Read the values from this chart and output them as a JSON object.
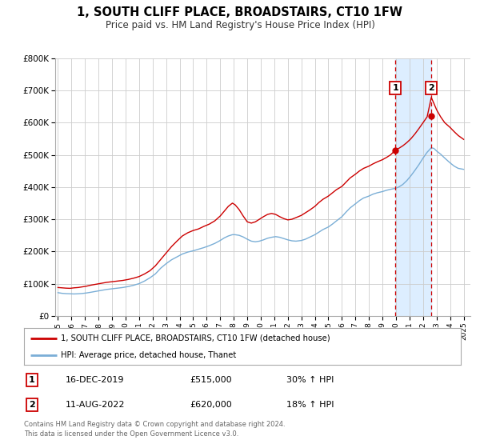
{
  "title": "1, SOUTH CLIFF PLACE, BROADSTAIRS, CT10 1FW",
  "subtitle": "Price paid vs. HM Land Registry's House Price Index (HPI)",
  "ylim": [
    0,
    800000
  ],
  "yticks": [
    0,
    100000,
    200000,
    300000,
    400000,
    500000,
    600000,
    700000,
    800000
  ],
  "ytick_labels": [
    "£0",
    "£100K",
    "£200K",
    "£300K",
    "£400K",
    "£500K",
    "£600K",
    "£700K",
    "£800K"
  ],
  "xlim_start": 1994.8,
  "xlim_end": 2025.5,
  "xticks": [
    1995,
    1996,
    1997,
    1998,
    1999,
    2000,
    2001,
    2002,
    2003,
    2004,
    2005,
    2006,
    2007,
    2008,
    2009,
    2010,
    2011,
    2012,
    2013,
    2014,
    2015,
    2016,
    2017,
    2018,
    2019,
    2020,
    2021,
    2022,
    2023,
    2024,
    2025
  ],
  "legend_label_red": "1, SOUTH CLIFF PLACE, BROADSTAIRS, CT10 1FW (detached house)",
  "legend_label_blue": "HPI: Average price, detached house, Thanet",
  "event1_x": 2019.958,
  "event1_y": 515000,
  "event1_label": "1",
  "event1_date": "16-DEC-2019",
  "event1_price": "£515,000",
  "event1_hpi": "30% ↑ HPI",
  "event2_x": 2022.608,
  "event2_y": 620000,
  "event2_label": "2",
  "event2_date": "11-AUG-2022",
  "event2_price": "£620,000",
  "event2_hpi": "18% ↑ HPI",
  "shade_start": 2019.958,
  "shade_end": 2022.608,
  "red_color": "#cc0000",
  "blue_color": "#7aaed6",
  "shade_color": "#ddeeff",
  "background_color": "#ffffff",
  "grid_color": "#cccccc",
  "footer_text": "Contains HM Land Registry data © Crown copyright and database right 2024.\nThis data is licensed under the Open Government Licence v3.0."
}
